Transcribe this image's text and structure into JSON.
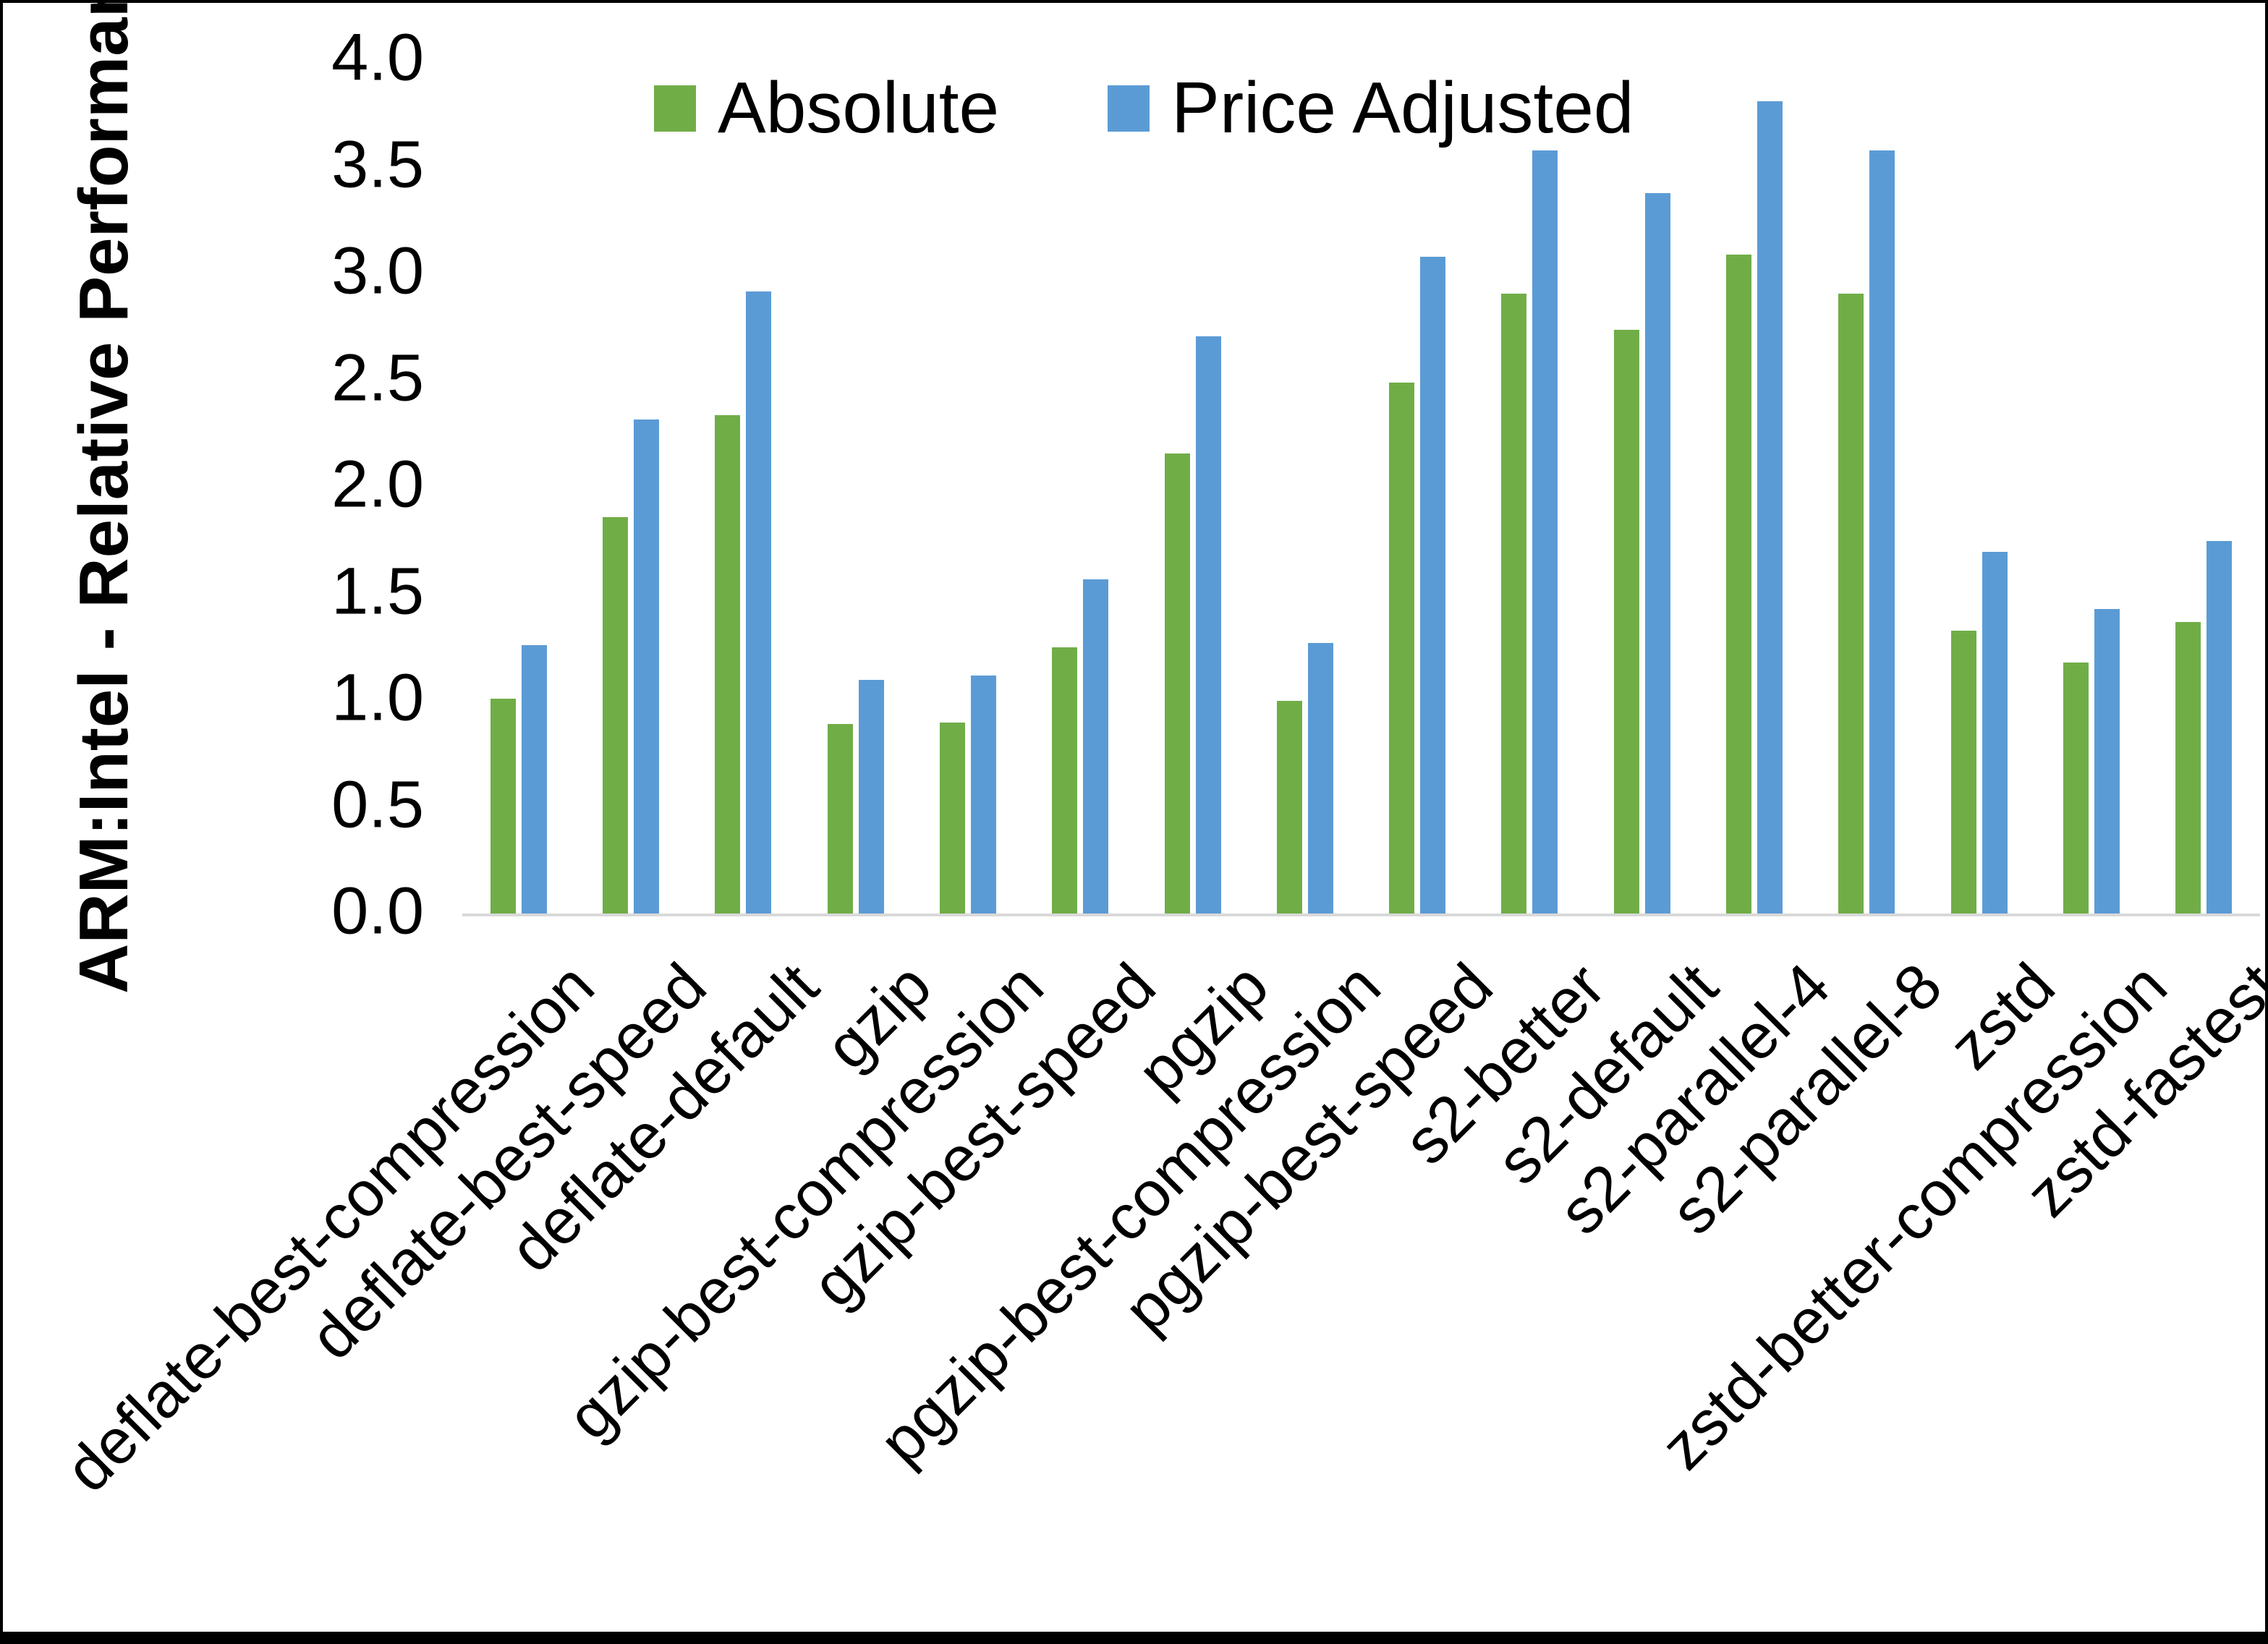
{
  "figure": {
    "background_color": "#ffffff",
    "frame_color": "#000000",
    "axis_line_color": "#d9d9d9",
    "text_color": "#000000"
  },
  "legend": {
    "position": "top-center",
    "items": [
      {
        "label": "Absolute",
        "color": "#70ad47"
      },
      {
        "label": "Price Adjusted",
        "color": "#5b9bd5"
      }
    ]
  },
  "chart_data": {
    "type": "bar",
    "title": "",
    "xlabel": "",
    "ylabel": "ARM:Intel - Relative Performance",
    "ylim": [
      0.0,
      4.0
    ],
    "ytick_step": 0.5,
    "ytick_labels": [
      "0.0",
      "0.5",
      "1.0",
      "1.5",
      "2.0",
      "2.5",
      "3.0",
      "3.5",
      "4.0"
    ],
    "grid": false,
    "legend_position": "top-center",
    "bar_colors": {
      "Absolute": "#70ad47",
      "Price Adjusted": "#5b9bd5"
    },
    "categories": [
      "deflate-best-compression",
      "deflate-best-speed",
      "deflate-default",
      "gzip",
      "gzip-best-compression",
      "gzip-best-speed",
      "pgzip",
      "pgzip-best-compression",
      "pgzip-best-speed",
      "s2-better",
      "s2-default",
      "s2-parallel-4",
      "s2-parallel-8",
      "zstd",
      "zstd-better-compression",
      "zstd-fastest"
    ],
    "series": [
      {
        "name": "Absolute",
        "color": "#70ad47",
        "values": [
          1.01,
          1.86,
          2.34,
          0.89,
          0.9,
          1.25,
          2.16,
          1.0,
          2.49,
          2.91,
          2.74,
          3.09,
          2.91,
          1.33,
          1.18,
          1.37
        ]
      },
      {
        "name": "Price Adjusted",
        "color": "#5b9bd5",
        "values": [
          1.26,
          2.32,
          2.92,
          1.1,
          1.12,
          1.57,
          2.71,
          1.27,
          3.08,
          3.58,
          3.38,
          3.81,
          3.58,
          1.7,
          1.43,
          1.75
        ]
      }
    ]
  }
}
